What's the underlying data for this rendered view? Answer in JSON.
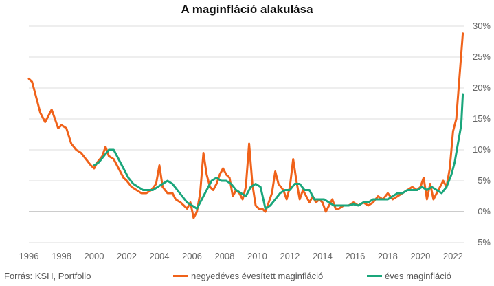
{
  "chart_data": {
    "type": "line",
    "title": "A maginfláció alakulása",
    "xlabel": "",
    "ylabel": "",
    "xlim": [
      1996,
      2022.7
    ],
    "ylim": [
      -5,
      30
    ],
    "x_ticks": [
      "1996",
      "1998",
      "2000",
      "2002",
      "2004",
      "2006",
      "2008",
      "2010",
      "2012",
      "2014",
      "2016",
      "2018",
      "2020",
      "2022"
    ],
    "y_ticks": [
      "30%",
      "25%",
      "20%",
      "15%",
      "10%",
      "5%",
      "0%",
      "-5%"
    ],
    "y_tick_values": [
      30,
      25,
      20,
      15,
      10,
      5,
      0,
      -5
    ],
    "grid": true,
    "legend_position": "bottom-right",
    "series": [
      {
        "name": "negyedéves évesített maginfláció",
        "color": "#f0621a",
        "points": [
          [
            1996.0,
            21.5
          ],
          [
            1996.2,
            21.0
          ],
          [
            1996.5,
            18.0
          ],
          [
            1996.7,
            16.0
          ],
          [
            1997.0,
            14.5
          ],
          [
            1997.2,
            15.5
          ],
          [
            1997.4,
            16.5
          ],
          [
            1997.6,
            15.0
          ],
          [
            1997.8,
            13.5
          ],
          [
            1998.0,
            14.0
          ],
          [
            1998.3,
            13.5
          ],
          [
            1998.6,
            11.0
          ],
          [
            1998.9,
            10.0
          ],
          [
            1999.2,
            9.5
          ],
          [
            1999.5,
            8.5
          ],
          [
            1999.8,
            7.5
          ],
          [
            2000.0,
            7.0
          ],
          [
            2000.2,
            8.0
          ],
          [
            2000.5,
            9.0
          ],
          [
            2000.7,
            10.5
          ],
          [
            2000.9,
            9.0
          ],
          [
            2001.2,
            8.5
          ],
          [
            2001.5,
            7.0
          ],
          [
            2001.8,
            5.5
          ],
          [
            2002.0,
            5.0
          ],
          [
            2002.3,
            4.0
          ],
          [
            2002.6,
            3.5
          ],
          [
            2002.9,
            3.0
          ],
          [
            2003.2,
            3.0
          ],
          [
            2003.5,
            3.5
          ],
          [
            2003.8,
            4.5
          ],
          [
            2004.0,
            7.5
          ],
          [
            2004.2,
            4.0
          ],
          [
            2004.5,
            3.0
          ],
          [
            2004.8,
            3.0
          ],
          [
            2005.0,
            2.0
          ],
          [
            2005.3,
            1.5
          ],
          [
            2005.5,
            1.0
          ],
          [
            2005.7,
            0.5
          ],
          [
            2005.9,
            1.5
          ],
          [
            2006.1,
            -1.0
          ],
          [
            2006.3,
            0.0
          ],
          [
            2006.5,
            3.0
          ],
          [
            2006.7,
            9.5
          ],
          [
            2006.9,
            6.0
          ],
          [
            2007.1,
            4.0
          ],
          [
            2007.3,
            3.5
          ],
          [
            2007.5,
            4.5
          ],
          [
            2007.7,
            6.0
          ],
          [
            2007.9,
            7.0
          ],
          [
            2008.1,
            6.0
          ],
          [
            2008.3,
            5.5
          ],
          [
            2008.5,
            2.5
          ],
          [
            2008.7,
            3.5
          ],
          [
            2008.9,
            3.0
          ],
          [
            2009.1,
            2.0
          ],
          [
            2009.3,
            4.0
          ],
          [
            2009.5,
            11.0
          ],
          [
            2009.7,
            4.5
          ],
          [
            2009.9,
            1.0
          ],
          [
            2010.1,
            0.5
          ],
          [
            2010.3,
            0.5
          ],
          [
            2010.5,
            0.0
          ],
          [
            2010.7,
            1.5
          ],
          [
            2010.9,
            3.0
          ],
          [
            2011.1,
            6.5
          ],
          [
            2011.3,
            4.5
          ],
          [
            2011.6,
            3.5
          ],
          [
            2011.8,
            2.0
          ],
          [
            2012.0,
            4.0
          ],
          [
            2012.2,
            8.5
          ],
          [
            2012.4,
            5.0
          ],
          [
            2012.6,
            2.0
          ],
          [
            2012.8,
            3.5
          ],
          [
            2013.0,
            2.5
          ],
          [
            2013.2,
            1.5
          ],
          [
            2013.4,
            2.5
          ],
          [
            2013.6,
            1.5
          ],
          [
            2013.8,
            2.0
          ],
          [
            2014.0,
            1.5
          ],
          [
            2014.2,
            0.0
          ],
          [
            2014.4,
            1.0
          ],
          [
            2014.6,
            2.0
          ],
          [
            2014.8,
            0.5
          ],
          [
            2015.0,
            0.5
          ],
          [
            2015.3,
            1.0
          ],
          [
            2015.6,
            1.0
          ],
          [
            2015.9,
            1.5
          ],
          [
            2016.2,
            1.0
          ],
          [
            2016.5,
            1.5
          ],
          [
            2016.8,
            1.0
          ],
          [
            2017.1,
            1.5
          ],
          [
            2017.4,
            2.5
          ],
          [
            2017.7,
            2.0
          ],
          [
            2018.0,
            3.0
          ],
          [
            2018.3,
            2.0
          ],
          [
            2018.6,
            2.5
          ],
          [
            2018.9,
            3.0
          ],
          [
            2019.2,
            3.5
          ],
          [
            2019.5,
            4.0
          ],
          [
            2019.8,
            3.5
          ],
          [
            2020.0,
            4.0
          ],
          [
            2020.2,
            5.5
          ],
          [
            2020.4,
            2.0
          ],
          [
            2020.6,
            4.5
          ],
          [
            2020.8,
            2.0
          ],
          [
            2021.0,
            3.0
          ],
          [
            2021.2,
            4.0
          ],
          [
            2021.4,
            5.0
          ],
          [
            2021.6,
            4.0
          ],
          [
            2021.8,
            7.0
          ],
          [
            2022.0,
            13.0
          ],
          [
            2022.2,
            15.0
          ],
          [
            2022.4,
            22.0
          ],
          [
            2022.6,
            28.8
          ]
        ]
      },
      {
        "name": "éves maginfláció",
        "color": "#1aa67b",
        "points": [
          [
            2000.0,
            7.5
          ],
          [
            2000.3,
            8.0
          ],
          [
            2000.6,
            9.0
          ],
          [
            2000.9,
            10.0
          ],
          [
            2001.2,
            10.0
          ],
          [
            2001.5,
            8.5
          ],
          [
            2001.8,
            7.0
          ],
          [
            2002.1,
            5.5
          ],
          [
            2002.4,
            4.5
          ],
          [
            2002.7,
            4.0
          ],
          [
            2003.0,
            3.5
          ],
          [
            2003.3,
            3.5
          ],
          [
            2003.6,
            3.5
          ],
          [
            2003.9,
            4.0
          ],
          [
            2004.2,
            4.5
          ],
          [
            2004.5,
            5.0
          ],
          [
            2004.8,
            4.5
          ],
          [
            2005.1,
            3.5
          ],
          [
            2005.4,
            2.5
          ],
          [
            2005.7,
            1.5
          ],
          [
            2006.0,
            1.0
          ],
          [
            2006.3,
            0.5
          ],
          [
            2006.6,
            2.0
          ],
          [
            2006.9,
            3.5
          ],
          [
            2007.2,
            5.0
          ],
          [
            2007.5,
            5.5
          ],
          [
            2007.8,
            5.0
          ],
          [
            2008.1,
            5.0
          ],
          [
            2008.4,
            4.5
          ],
          [
            2008.7,
            3.5
          ],
          [
            2009.0,
            3.0
          ],
          [
            2009.3,
            2.5
          ],
          [
            2009.6,
            4.0
          ],
          [
            2009.9,
            4.5
          ],
          [
            2010.2,
            4.0
          ],
          [
            2010.5,
            0.5
          ],
          [
            2010.8,
            1.0
          ],
          [
            2011.1,
            2.0
          ],
          [
            2011.4,
            3.0
          ],
          [
            2011.7,
            3.5
          ],
          [
            2012.0,
            3.5
          ],
          [
            2012.3,
            4.5
          ],
          [
            2012.6,
            4.5
          ],
          [
            2012.9,
            3.5
          ],
          [
            2013.2,
            3.5
          ],
          [
            2013.5,
            2.0
          ],
          [
            2013.8,
            2.0
          ],
          [
            2014.1,
            2.0
          ],
          [
            2014.4,
            1.5
          ],
          [
            2014.7,
            1.0
          ],
          [
            2015.0,
            1.0
          ],
          [
            2015.3,
            1.0
          ],
          [
            2015.6,
            1.0
          ],
          [
            2015.9,
            1.2
          ],
          [
            2016.2,
            1.0
          ],
          [
            2016.5,
            1.5
          ],
          [
            2016.8,
            1.5
          ],
          [
            2017.1,
            2.0
          ],
          [
            2017.4,
            2.0
          ],
          [
            2017.7,
            2.0
          ],
          [
            2018.0,
            2.0
          ],
          [
            2018.3,
            2.5
          ],
          [
            2018.6,
            3.0
          ],
          [
            2018.9,
            3.0
          ],
          [
            2019.2,
            3.5
          ],
          [
            2019.5,
            3.5
          ],
          [
            2019.8,
            3.5
          ],
          [
            2020.1,
            4.0
          ],
          [
            2020.4,
            3.5
          ],
          [
            2020.7,
            4.0
          ],
          [
            2021.0,
            3.5
          ],
          [
            2021.3,
            3.0
          ],
          [
            2021.6,
            4.0
          ],
          [
            2021.9,
            6.0
          ],
          [
            2022.1,
            8.0
          ],
          [
            2022.3,
            11.0
          ],
          [
            2022.5,
            14.0
          ],
          [
            2022.6,
            19.0
          ]
        ]
      }
    ]
  },
  "source_text": "Forrás: KSH, Portfolio"
}
